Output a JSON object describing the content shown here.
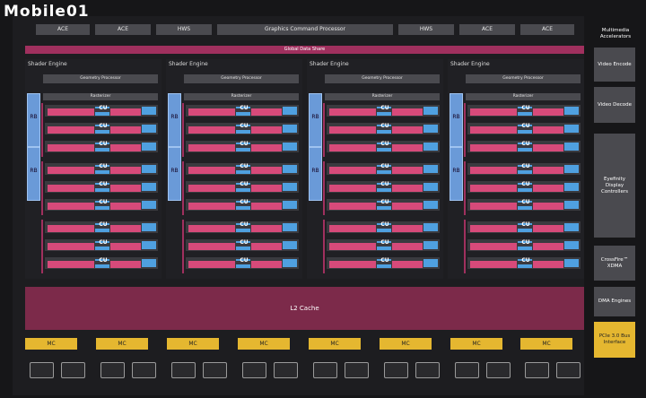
{
  "logo": "Mobile01",
  "top_row": [
    "ACE",
    "ACE",
    "HWS",
    "Graphics Command Processor",
    "HWS",
    "ACE",
    "ACE"
  ],
  "global_data_share": "Global Data Share",
  "shader_engines": [
    {
      "title": "Shader Engine",
      "geometry": "Geometry Processor",
      "rasterizer": "Rasterizer"
    },
    {
      "title": "Shader Engine",
      "geometry": "Geometry Processor",
      "rasterizer": "Rasterizer"
    },
    {
      "title": "Shader Engine",
      "geometry": "Geometry Processor",
      "rasterizer": "Rasterizer"
    },
    {
      "title": "Shader Engine",
      "geometry": "Geometry Processor",
      "rasterizer": "Rasterizer"
    }
  ],
  "rb_label": "RB",
  "cu_label": "CU",
  "l2_cache": "L2 Cache",
  "mc_label": "MC",
  "multimedia_title": "Multimedia Accelerators",
  "side_blocks": [
    "Video Encode",
    "Video Decode",
    "Eyefinity Display Controllers",
    "CrossFire™ XDMA",
    "DMA Engines",
    "PCIe 3.0 Bus Interface"
  ]
}
